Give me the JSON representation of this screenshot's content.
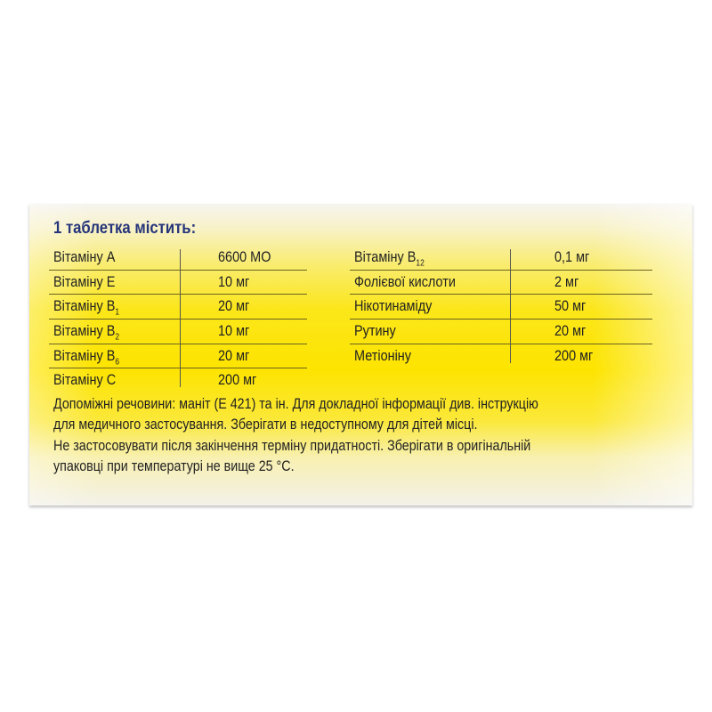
{
  "heading": "1 таблетка містить:",
  "left_table": [
    {
      "label": "Вітаміну A",
      "sub": "",
      "value": "6600 МО"
    },
    {
      "label": "Вітаміну E",
      "sub": "",
      "value": "10 мг"
    },
    {
      "label": "Вітаміну B",
      "sub": "1",
      "value": "20 мг"
    },
    {
      "label": "Вітаміну B",
      "sub": "2",
      "value": "10 мг"
    },
    {
      "label": "Вітаміну B",
      "sub": "6",
      "value": "20 мг"
    },
    {
      "label": "Вітаміну C",
      "sub": "",
      "value": "200 мг"
    }
  ],
  "right_table": [
    {
      "label": "Вітаміну B",
      "sub": "12",
      "value": "0,1 мг"
    },
    {
      "label": "Фолієвої кислоти",
      "sub": "",
      "value": "2 мг"
    },
    {
      "label": "Нікотинаміду",
      "sub": "",
      "value": "50 мг"
    },
    {
      "label": "Рутину",
      "sub": "",
      "value": "20 мг"
    },
    {
      "label": "Метіоніну",
      "sub": "",
      "value": "200 мг"
    }
  ],
  "footer_lines": [
    "Допоміжні речовини: маніт (E 421) та ін. Для докладної інформації див. інструкцію",
    "для медичного застосування. Зберігати в недоступному для дітей місці.",
    "Не застосовувати після закінчення терміну придатності. Зберігати в оригінальній",
    "упаковці при температурі не вище 25 °C."
  ],
  "colors": {
    "heading": "#26357a",
    "yellow": "#fde400"
  }
}
